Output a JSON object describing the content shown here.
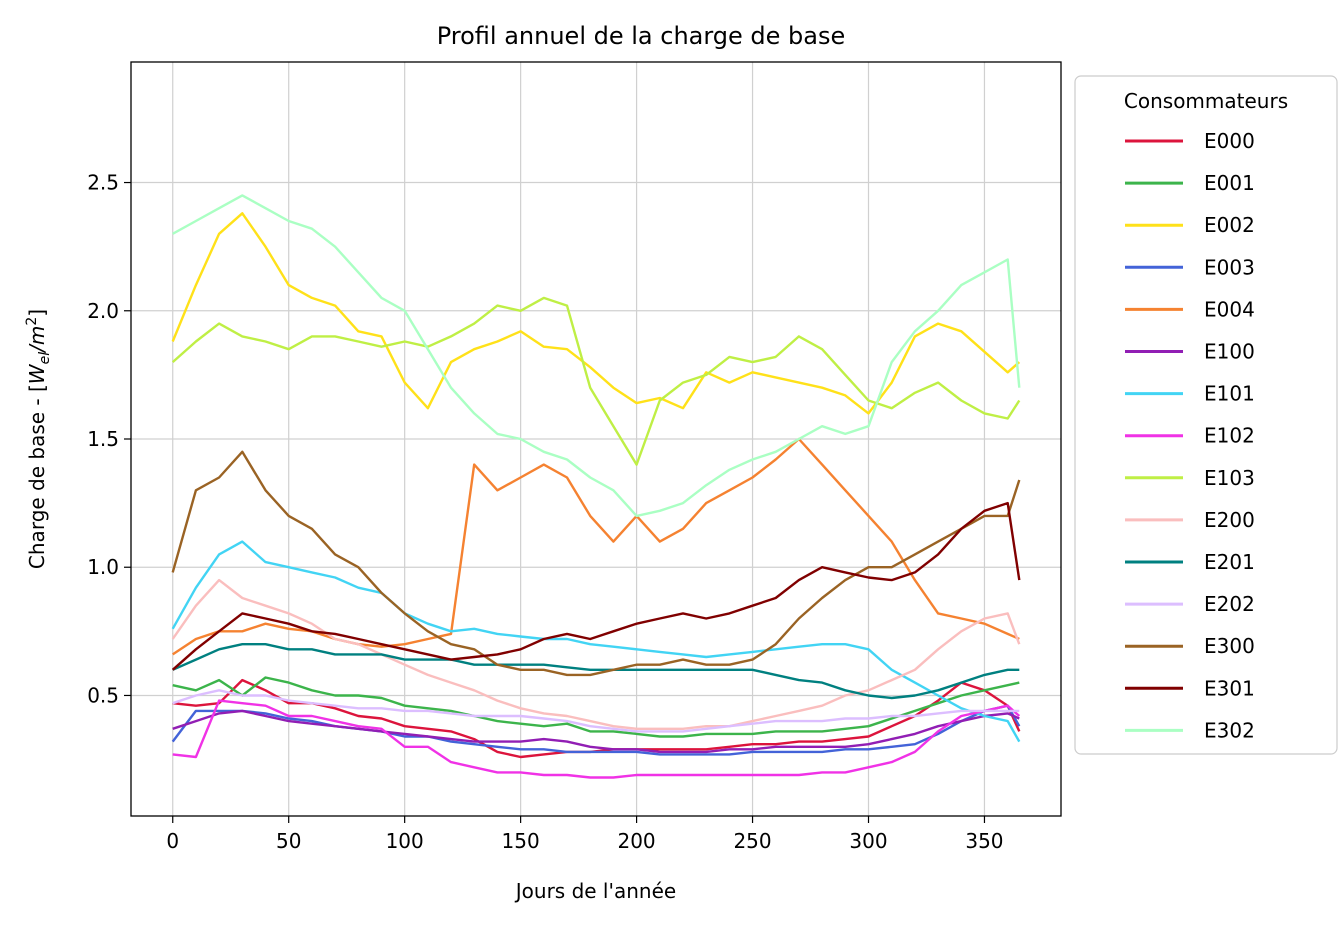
{
  "chart_data": {
    "type": "line",
    "title": "Profil annuel de la charge de base",
    "xlabel": "Jours de l'année",
    "ylabel_prefix": "Charge de base - [",
    "ylabel_var": "W",
    "ylabel_sub": "el",
    "ylabel_slash": "/",
    "ylabel_unit": "m",
    "ylabel_sup": "2",
    "ylabel_suffix": "]",
    "xlim": [
      -18,
      383
    ],
    "ylim": [
      0.03,
      2.97
    ],
    "xticks": [
      0,
      50,
      100,
      150,
      200,
      250,
      300,
      350
    ],
    "yticks": [
      0.5,
      1.0,
      1.5,
      2.0,
      2.5
    ],
    "ytick_labels": [
      "0.5",
      "1.0",
      "1.5",
      "2.0",
      "2.5"
    ],
    "grid": true,
    "legend": {
      "title": "Consommateurs",
      "placement": "outside-right-top"
    },
    "x": [
      0,
      10,
      20,
      30,
      40,
      50,
      60,
      70,
      80,
      90,
      100,
      110,
      120,
      130,
      140,
      150,
      160,
      170,
      180,
      190,
      200,
      210,
      220,
      230,
      240,
      250,
      260,
      270,
      280,
      290,
      300,
      310,
      320,
      330,
      340,
      350,
      360,
      365
    ],
    "series": [
      {
        "name": "E000",
        "color": "#dc143c",
        "values": [
          0.47,
          0.46,
          0.47,
          0.56,
          0.52,
          0.47,
          0.47,
          0.45,
          0.42,
          0.41,
          0.38,
          0.37,
          0.36,
          0.33,
          0.28,
          0.26,
          0.27,
          0.28,
          0.28,
          0.29,
          0.29,
          0.29,
          0.29,
          0.29,
          0.3,
          0.31,
          0.31,
          0.32,
          0.32,
          0.33,
          0.34,
          0.38,
          0.42,
          0.48,
          0.55,
          0.52,
          0.46,
          0.36
        ]
      },
      {
        "name": "E001",
        "color": "#3cb44b",
        "values": [
          0.54,
          0.52,
          0.56,
          0.5,
          0.57,
          0.55,
          0.52,
          0.5,
          0.5,
          0.49,
          0.46,
          0.45,
          0.44,
          0.42,
          0.4,
          0.39,
          0.38,
          0.39,
          0.36,
          0.36,
          0.35,
          0.34,
          0.34,
          0.35,
          0.35,
          0.35,
          0.36,
          0.36,
          0.36,
          0.37,
          0.38,
          0.41,
          0.44,
          0.47,
          0.5,
          0.52,
          0.54,
          0.55
        ]
      },
      {
        "name": "E002",
        "color": "#ffe119",
        "values": [
          1.88,
          2.1,
          2.3,
          2.38,
          2.25,
          2.1,
          2.05,
          2.02,
          1.92,
          1.9,
          1.72,
          1.62,
          1.8,
          1.85,
          1.88,
          1.92,
          1.86,
          1.85,
          1.78,
          1.7,
          1.64,
          1.66,
          1.62,
          1.76,
          1.72,
          1.76,
          1.74,
          1.72,
          1.7,
          1.67,
          1.6,
          1.72,
          1.9,
          1.95,
          1.92,
          1.84,
          1.76,
          1.8
        ]
      },
      {
        "name": "E003",
        "color": "#4363d8",
        "values": [
          0.32,
          0.44,
          0.44,
          0.44,
          0.43,
          0.41,
          0.4,
          0.38,
          0.37,
          0.36,
          0.34,
          0.34,
          0.32,
          0.31,
          0.3,
          0.29,
          0.29,
          0.28,
          0.28,
          0.28,
          0.28,
          0.27,
          0.27,
          0.27,
          0.27,
          0.28,
          0.28,
          0.28,
          0.28,
          0.29,
          0.29,
          0.3,
          0.31,
          0.35,
          0.4,
          0.44,
          0.46,
          0.38
        ]
      },
      {
        "name": "E004",
        "color": "#f58231",
        "values": [
          0.66,
          0.72,
          0.75,
          0.75,
          0.78,
          0.76,
          0.75,
          0.72,
          0.7,
          0.69,
          0.7,
          0.72,
          0.74,
          1.4,
          1.3,
          1.35,
          1.4,
          1.35,
          1.2,
          1.1,
          1.2,
          1.1,
          1.15,
          1.25,
          1.3,
          1.35,
          1.42,
          1.5,
          1.4,
          1.3,
          1.2,
          1.1,
          0.95,
          0.82,
          0.8,
          0.78,
          0.74,
          0.72
        ]
      },
      {
        "name": "E100",
        "color": "#911eb4",
        "values": [
          0.37,
          0.4,
          0.43,
          0.44,
          0.42,
          0.4,
          0.39,
          0.38,
          0.37,
          0.36,
          0.35,
          0.34,
          0.33,
          0.32,
          0.32,
          0.32,
          0.33,
          0.32,
          0.3,
          0.29,
          0.29,
          0.28,
          0.28,
          0.28,
          0.29,
          0.29,
          0.3,
          0.3,
          0.3,
          0.3,
          0.31,
          0.33,
          0.35,
          0.38,
          0.4,
          0.42,
          0.43,
          0.41
        ]
      },
      {
        "name": "E101",
        "color": "#42d4f4",
        "values": [
          0.76,
          0.92,
          1.05,
          1.1,
          1.02,
          1.0,
          0.98,
          0.96,
          0.92,
          0.9,
          0.82,
          0.78,
          0.75,
          0.76,
          0.74,
          0.73,
          0.72,
          0.72,
          0.7,
          0.69,
          0.68,
          0.67,
          0.66,
          0.65,
          0.66,
          0.67,
          0.68,
          0.69,
          0.7,
          0.7,
          0.68,
          0.6,
          0.55,
          0.5,
          0.45,
          0.42,
          0.4,
          0.32
        ]
      },
      {
        "name": "E102",
        "color": "#f032e6",
        "values": [
          0.27,
          0.26,
          0.48,
          0.47,
          0.46,
          0.42,
          0.42,
          0.4,
          0.38,
          0.37,
          0.3,
          0.3,
          0.24,
          0.22,
          0.2,
          0.2,
          0.19,
          0.19,
          0.18,
          0.18,
          0.19,
          0.19,
          0.19,
          0.19,
          0.19,
          0.19,
          0.19,
          0.19,
          0.2,
          0.2,
          0.22,
          0.24,
          0.28,
          0.36,
          0.42,
          0.44,
          0.46,
          0.42
        ]
      },
      {
        "name": "E103",
        "color": "#bfef45",
        "values": [
          1.8,
          1.88,
          1.95,
          1.9,
          1.88,
          1.85,
          1.9,
          1.9,
          1.88,
          1.86,
          1.88,
          1.86,
          1.9,
          1.95,
          2.02,
          2.0,
          2.05,
          2.02,
          1.7,
          1.55,
          1.4,
          1.65,
          1.72,
          1.75,
          1.82,
          1.8,
          1.82,
          1.9,
          1.85,
          1.75,
          1.65,
          1.62,
          1.68,
          1.72,
          1.65,
          1.6,
          1.58,
          1.65
        ]
      },
      {
        "name": "E200",
        "color": "#fabebe",
        "values": [
          0.72,
          0.85,
          0.95,
          0.88,
          0.85,
          0.82,
          0.78,
          0.72,
          0.7,
          0.66,
          0.62,
          0.58,
          0.55,
          0.52,
          0.48,
          0.45,
          0.43,
          0.42,
          0.4,
          0.38,
          0.37,
          0.37,
          0.37,
          0.38,
          0.38,
          0.4,
          0.42,
          0.44,
          0.46,
          0.5,
          0.52,
          0.56,
          0.6,
          0.68,
          0.75,
          0.8,
          0.82,
          0.7
        ]
      },
      {
        "name": "E201",
        "color": "#008080",
        "values": [
          0.6,
          0.64,
          0.68,
          0.7,
          0.7,
          0.68,
          0.68,
          0.66,
          0.66,
          0.66,
          0.64,
          0.64,
          0.64,
          0.62,
          0.62,
          0.62,
          0.62,
          0.61,
          0.6,
          0.6,
          0.6,
          0.6,
          0.6,
          0.6,
          0.6,
          0.6,
          0.58,
          0.56,
          0.55,
          0.52,
          0.5,
          0.49,
          0.5,
          0.52,
          0.55,
          0.58,
          0.6,
          0.6
        ]
      },
      {
        "name": "E202",
        "color": "#dcbeff",
        "values": [
          0.47,
          0.5,
          0.52,
          0.5,
          0.5,
          0.48,
          0.47,
          0.46,
          0.45,
          0.45,
          0.44,
          0.44,
          0.43,
          0.42,
          0.42,
          0.42,
          0.41,
          0.4,
          0.38,
          0.37,
          0.36,
          0.36,
          0.36,
          0.37,
          0.38,
          0.39,
          0.4,
          0.4,
          0.4,
          0.41,
          0.41,
          0.42,
          0.42,
          0.43,
          0.44,
          0.44,
          0.44,
          0.44
        ]
      },
      {
        "name": "E300",
        "color": "#9a6324",
        "values": [
          0.98,
          1.3,
          1.35,
          1.45,
          1.3,
          1.2,
          1.15,
          1.05,
          1.0,
          0.9,
          0.82,
          0.75,
          0.7,
          0.68,
          0.62,
          0.6,
          0.6,
          0.58,
          0.58,
          0.6,
          0.62,
          0.62,
          0.64,
          0.62,
          0.62,
          0.64,
          0.7,
          0.8,
          0.88,
          0.95,
          1.0,
          1.0,
          1.05,
          1.1,
          1.15,
          1.2,
          1.2,
          1.34
        ]
      },
      {
        "name": "E301",
        "color": "#800000",
        "values": [
          0.6,
          0.68,
          0.75,
          0.82,
          0.8,
          0.78,
          0.75,
          0.74,
          0.72,
          0.7,
          0.68,
          0.66,
          0.64,
          0.65,
          0.66,
          0.68,
          0.72,
          0.74,
          0.72,
          0.75,
          0.78,
          0.8,
          0.82,
          0.8,
          0.82,
          0.85,
          0.88,
          0.95,
          1.0,
          0.98,
          0.96,
          0.95,
          0.98,
          1.05,
          1.15,
          1.22,
          1.25,
          0.95
        ]
      },
      {
        "name": "E302",
        "color": "#aaffc3",
        "values": [
          2.3,
          2.35,
          2.4,
          2.45,
          2.4,
          2.35,
          2.32,
          2.25,
          2.15,
          2.05,
          2.0,
          1.85,
          1.7,
          1.6,
          1.52,
          1.5,
          1.45,
          1.42,
          1.35,
          1.3,
          1.2,
          1.22,
          1.25,
          1.32,
          1.38,
          1.42,
          1.45,
          1.5,
          1.55,
          1.52,
          1.55,
          1.8,
          1.92,
          2.0,
          2.1,
          2.15,
          2.2,
          1.7
        ]
      }
    ]
  }
}
